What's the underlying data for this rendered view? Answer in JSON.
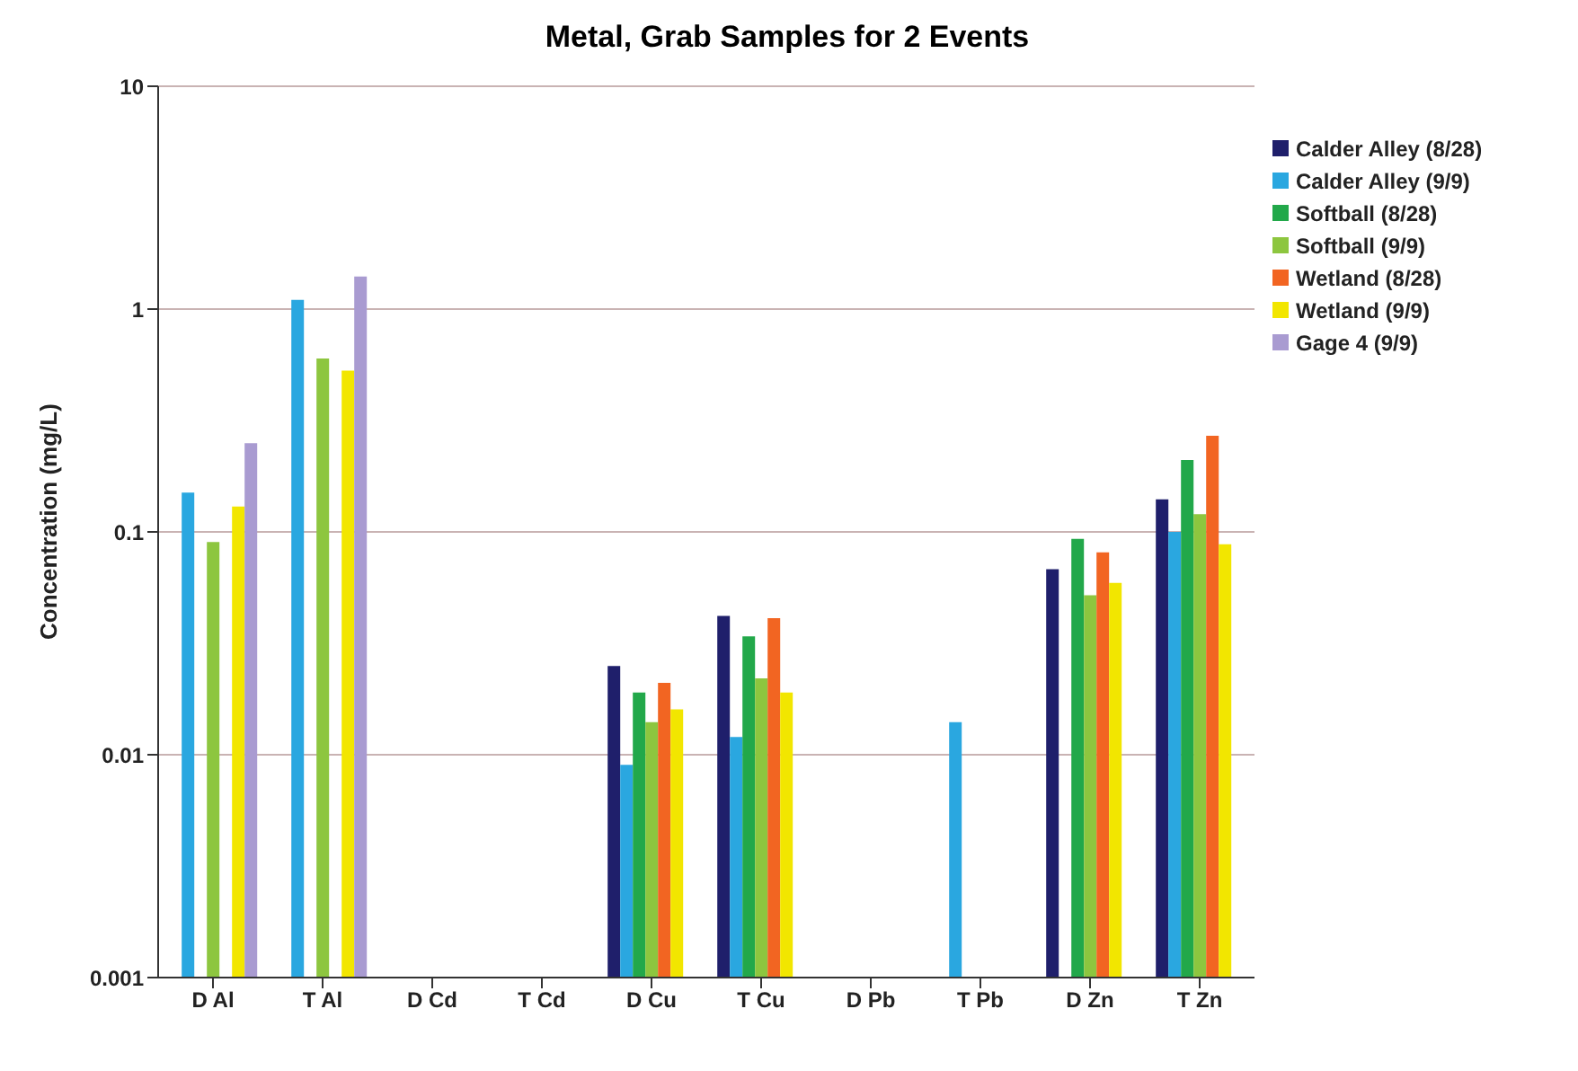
{
  "chart_data": {
    "type": "bar",
    "title": "Metal, Grab Samples for 2 Events",
    "ylabel": "Concentration (mg/L)",
    "categories": [
      "D Al",
      "T Al",
      "D Cd",
      "T Cd",
      "D Cu",
      "T Cu",
      "D Pb",
      "T Pb",
      "D Zn",
      "T Zn"
    ],
    "series": [
      {
        "name": "Calder Alley (8/28)",
        "color": "#1f1f6b",
        "values": [
          null,
          null,
          null,
          null,
          0.025,
          0.042,
          null,
          null,
          0.068,
          0.14
        ]
      },
      {
        "name": "Calder Alley (9/9)",
        "color": "#2aa7e0",
        "values": [
          0.15,
          1.1,
          null,
          null,
          0.009,
          0.012,
          null,
          0.014,
          null,
          0.1
        ]
      },
      {
        "name": "Softball (8/28)",
        "color": "#22a84a",
        "values": [
          null,
          null,
          null,
          null,
          0.019,
          0.034,
          null,
          null,
          0.093,
          0.21
        ]
      },
      {
        "name": "Softball (9/9)",
        "color": "#8dc63f",
        "values": [
          0.09,
          0.6,
          null,
          null,
          0.014,
          0.022,
          null,
          null,
          0.052,
          0.12
        ]
      },
      {
        "name": "Wetland (8/28)",
        "color": "#f26522",
        "values": [
          null,
          null,
          null,
          null,
          0.021,
          0.041,
          null,
          null,
          0.081,
          0.27
        ]
      },
      {
        "name": "Wetland (9/9)",
        "color": "#f2e600",
        "values": [
          0.13,
          0.53,
          null,
          null,
          0.016,
          0.019,
          null,
          null,
          0.059,
          0.088
        ]
      },
      {
        "name": "Gage 4 (9/9)",
        "color": "#a99bd1",
        "values": [
          0.25,
          1.4,
          null,
          null,
          null,
          null,
          null,
          null,
          null,
          null
        ]
      }
    ],
    "log": true,
    "ylim": [
      0.001,
      10
    ],
    "yticks": [
      0.001,
      0.01,
      0.1,
      1,
      10
    ],
    "grid": "y",
    "legend": "top right"
  }
}
